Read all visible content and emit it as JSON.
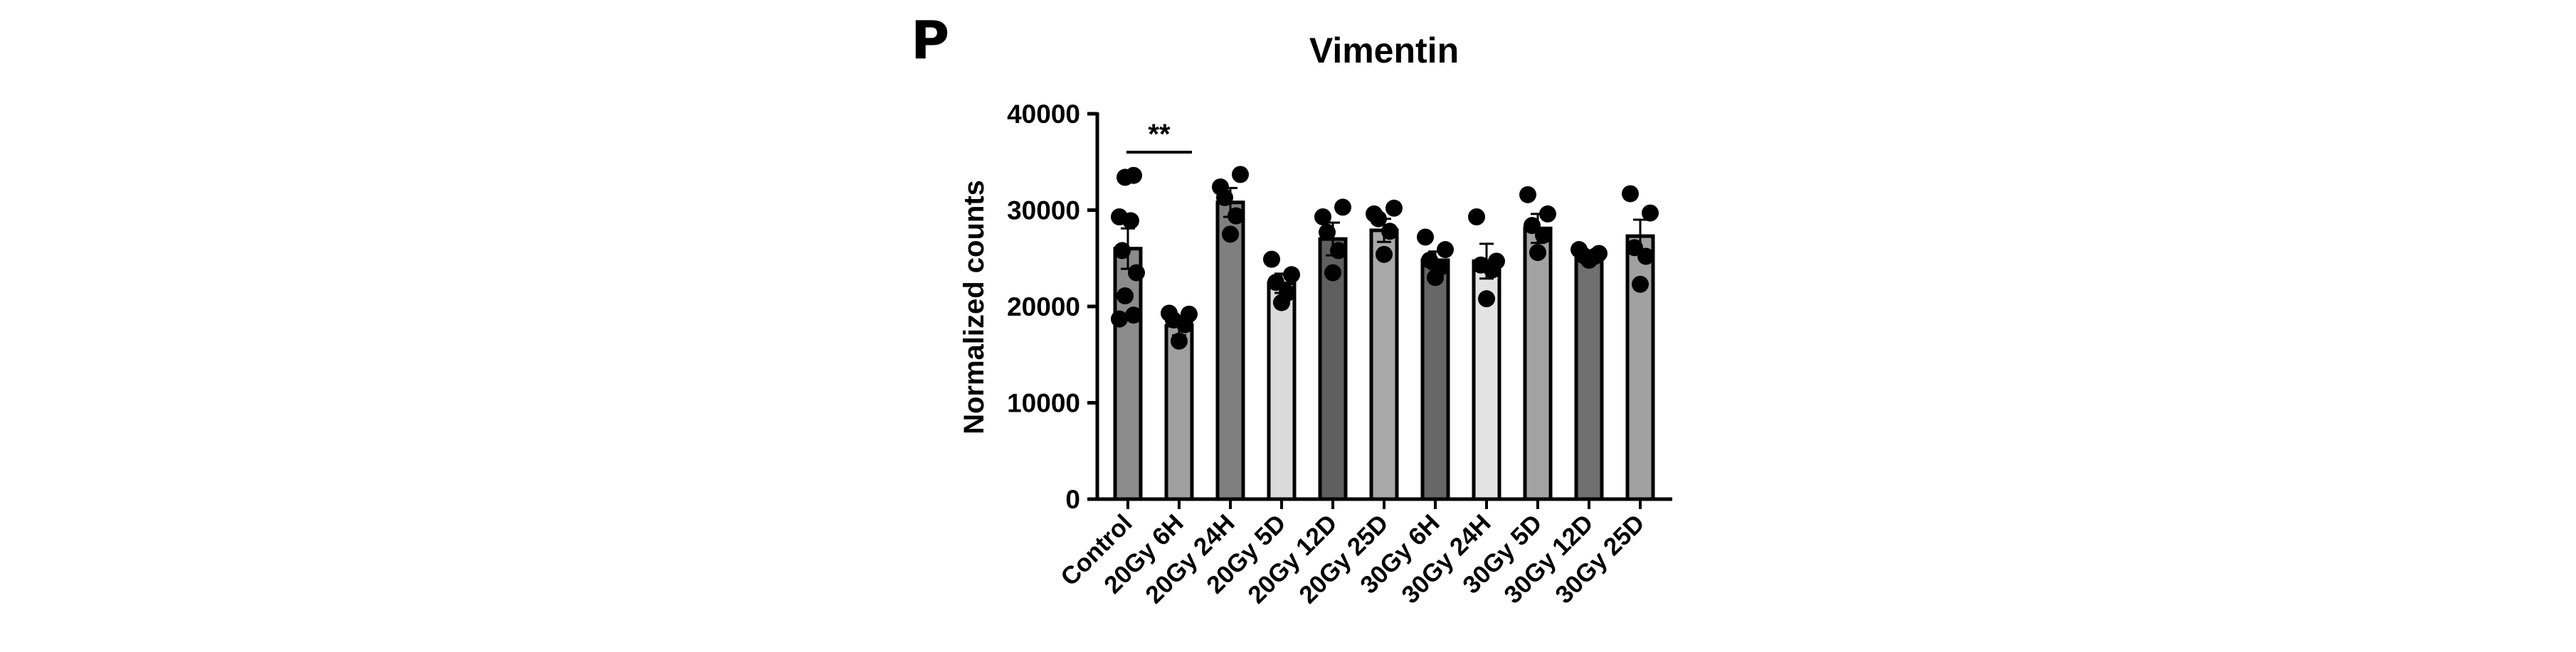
{
  "panel_label": "P",
  "chart_data": {
    "type": "bar",
    "title": "Vimentin",
    "xlabel": "",
    "ylabel": "Normalized counts",
    "ylim": [
      0,
      40000
    ],
    "yticks": [
      0,
      10000,
      20000,
      30000,
      40000
    ],
    "ytick_labels": [
      "0",
      "10000",
      "20000",
      "30000",
      "40000"
    ],
    "grid": false,
    "categories": [
      "Control",
      "20Gy 6H",
      "20Gy 24H",
      "20Gy 5D",
      "20Gy 12D",
      "20Gy 25D",
      "30Gy 6H",
      "30Gy 24H",
      "30Gy 5D",
      "30Gy 12D",
      "30Gy 25D"
    ],
    "values": [
      26000,
      18000,
      30800,
      22400,
      27000,
      27900,
      24800,
      24700,
      28100,
      25200,
      27300
    ],
    "errors": [
      2100,
      1000,
      1500,
      1000,
      1700,
      1200,
      900,
      1800,
      1500,
      500,
      1700
    ],
    "bar_colors": [
      "#8c8c8c",
      "#9f9f9f",
      "#7f7f7f",
      "#dadada",
      "#5f5f5f",
      "#a9a9a9",
      "#666666",
      "#e3e3e3",
      "#a3a3a3",
      "#707070",
      "#a1a1a1"
    ],
    "points": [
      [
        33400,
        33600,
        29300,
        28900,
        25800,
        23500,
        21100,
        19100,
        18700
      ],
      [
        19300,
        19200,
        18600,
        18100,
        16400
      ],
      [
        32400,
        33700,
        31300,
        29400,
        27500
      ],
      [
        24900,
        23300,
        22500,
        21400,
        20400
      ],
      [
        29300,
        30300,
        27700,
        25800,
        23500
      ],
      [
        29600,
        30200,
        29100,
        27800,
        25400
      ],
      [
        27200,
        25900,
        24800,
        24100,
        23000
      ],
      [
        29300,
        24700,
        24300,
        23800,
        20800
      ],
      [
        31600,
        29600,
        28400,
        27400,
        25600
      ],
      [
        25900,
        25500,
        25300,
        25200,
        24800
      ],
      [
        31700,
        29700,
        26100,
        25200,
        22300
      ]
    ],
    "annotations": [
      {
        "text": "**",
        "from": "Control",
        "to": "20Gy 6H"
      }
    ]
  }
}
